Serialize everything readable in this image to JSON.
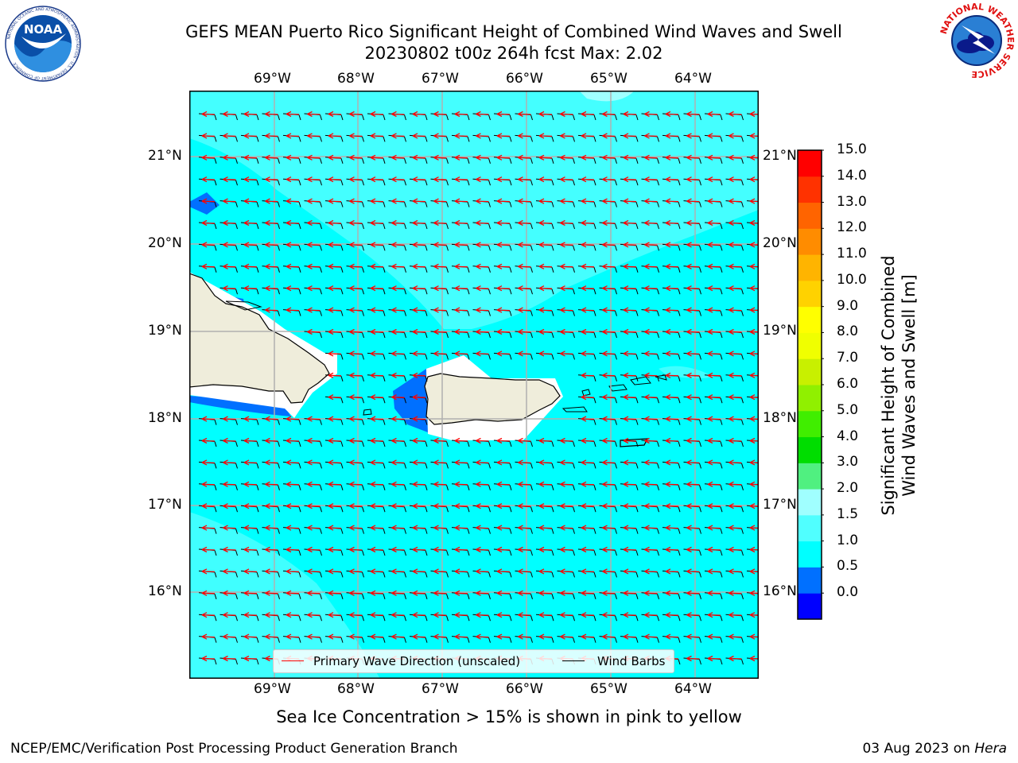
{
  "header": {
    "title_line1": "GEFS MEAN Puerto Rico Significant Height of Combined Wind Waves and Swell",
    "title_line2": "20230802 t00z 264h fcst   Max: 2.02"
  },
  "logos": {
    "left": "noaa-logo",
    "left_text": "NOAA",
    "left_ring_text": "NATIONAL OCEANIC AND ATMOSPHERIC ADMINISTRATION · U.S. DEPARTMENT OF COMMERCE",
    "right": "nws-logo",
    "right_ring_text": "NATIONAL WEATHER SERVICE"
  },
  "map": {
    "lon_labels": [
      "69°W",
      "68°W",
      "67°W",
      "66°W",
      "65°W",
      "64°W"
    ],
    "lat_labels": [
      "21°N",
      "20°N",
      "19°N",
      "18°N",
      "17°N",
      "16°N"
    ],
    "extent": {
      "lon": [
        -70.0,
        -63.25
      ],
      "lat": [
        15.1,
        21.75
      ]
    },
    "max_value": 2.02,
    "legend": {
      "wave_label": "Primary Wave Direction (unscaled)",
      "wind_label": "Wind Barbs",
      "wave_color": "#ff0000",
      "wind_color": "#000000"
    }
  },
  "colorbar": {
    "title_line1": "Significant Height of Combined",
    "title_line2": "Wind Waves and Swell [m]",
    "ticks": [
      "15.0",
      "14.0",
      "13.0",
      "12.0",
      "11.0",
      "10.0",
      "9.0",
      "8.0",
      "7.0",
      "6.0",
      "5.0",
      "4.0",
      "3.0",
      "2.0",
      "1.5",
      "1.0",
      "0.5",
      "0.0"
    ],
    "colors_bottom_to_top": [
      "#0000ff",
      "#0070ff",
      "#00ffff",
      "#50ffff",
      "#a0ffff",
      "#50f080",
      "#00dd00",
      "#40ee00",
      "#90f000",
      "#c8f000",
      "#f0ff00",
      "#ffff00",
      "#ffd200",
      "#ffb400",
      "#ff8c00",
      "#ff6400",
      "#ff3200",
      "#ff0000"
    ]
  },
  "subnote": "Sea Ice Concentration > 15% is shown in pink to yellow",
  "footer": {
    "left": "NCEP/EMC/Verification Post Processing Product Generation Branch",
    "right_prefix": "03 Aug 2023 on ",
    "right_host": "Hera"
  }
}
